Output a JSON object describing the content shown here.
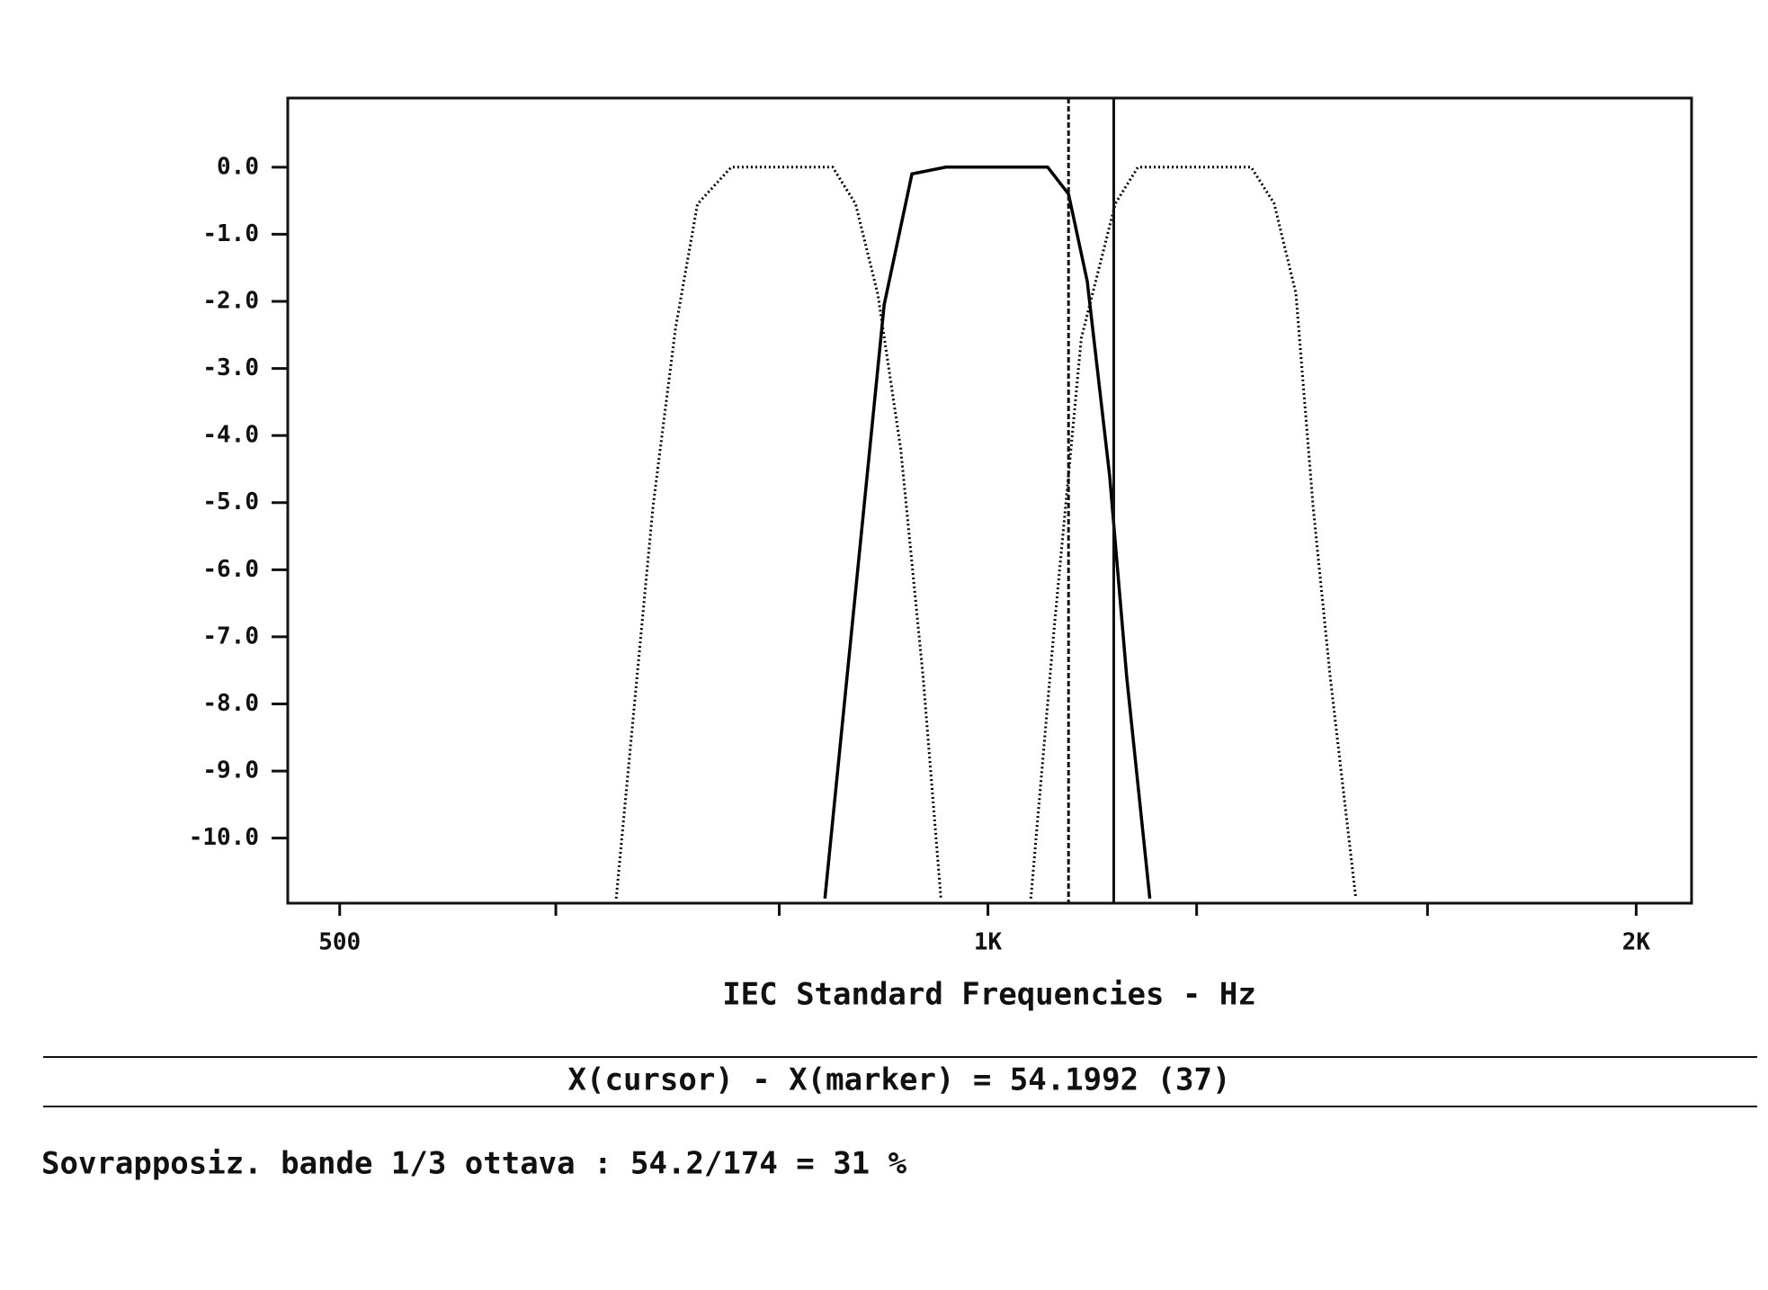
{
  "chart_data": {
    "type": "line",
    "xlabel": "IEC Standard Frequencies - Hz",
    "xscale": "log",
    "xlim": [
      473,
      2122
    ],
    "xticks": [
      {
        "value": 500,
        "label": "500"
      },
      {
        "value": 1000,
        "label": "1K"
      },
      {
        "value": 2000,
        "label": "2K"
      }
    ],
    "xminorticks": [
      630,
      800,
      1250,
      1600
    ],
    "ylim": [
      -10.97,
      1.03
    ],
    "yticks": [
      {
        "value": 0,
        "label": "0.0"
      },
      {
        "value": -1,
        "label": "-1.0"
      },
      {
        "value": -2,
        "label": "-2.0"
      },
      {
        "value": -3,
        "label": "-3.0"
      },
      {
        "value": -4,
        "label": "-4.0"
      },
      {
        "value": -5,
        "label": "-5.0"
      },
      {
        "value": -6,
        "label": "-6.0"
      },
      {
        "value": -7,
        "label": "-7.0"
      },
      {
        "value": -8,
        "label": "-8.0"
      },
      {
        "value": -9,
        "label": "-9.0"
      },
      {
        "value": -10,
        "label": "-10.0"
      }
    ],
    "series": [
      {
        "color": "#000000",
        "dash": "dotted",
        "x": [
          672,
          699,
          716,
          733,
          760,
          847,
          868,
          889,
          911,
          933,
          951
        ],
        "values": [
          -10.9,
          -5.05,
          -2.4,
          -0.55,
          0,
          0,
          -0.55,
          -1.9,
          -4.2,
          -7.6,
          -10.9
        ]
      },
      {
        "color": "#000000",
        "dash": "solid",
        "x": [
          840,
          895,
          922,
          956,
          1066,
          1090,
          1112,
          1139,
          1160,
          1189
        ],
        "values": [
          -10.9,
          -2.05,
          -0.1,
          0,
          0,
          -0.4,
          -1.7,
          -4.6,
          -7.6,
          -10.9
        ]
      },
      {
        "color": "#000000",
        "dash": "dotted",
        "x": [
          1047,
          1073,
          1105,
          1146,
          1174,
          1325,
          1358,
          1390,
          1416,
          1442,
          1482
        ],
        "values": [
          -10.9,
          -6.92,
          -2.55,
          -0.54,
          0,
          0,
          -0.54,
          -1.88,
          -5.08,
          -7.6,
          -10.9
        ]
      }
    ],
    "marker_x": 1090,
    "cursor_x": 1144,
    "readout": "X(cursor) - X(marker) = 54.1992 (37)",
    "footer": "Sovrapposiz. bande 1/3 ottava : 54.2/174 = 31 %"
  }
}
